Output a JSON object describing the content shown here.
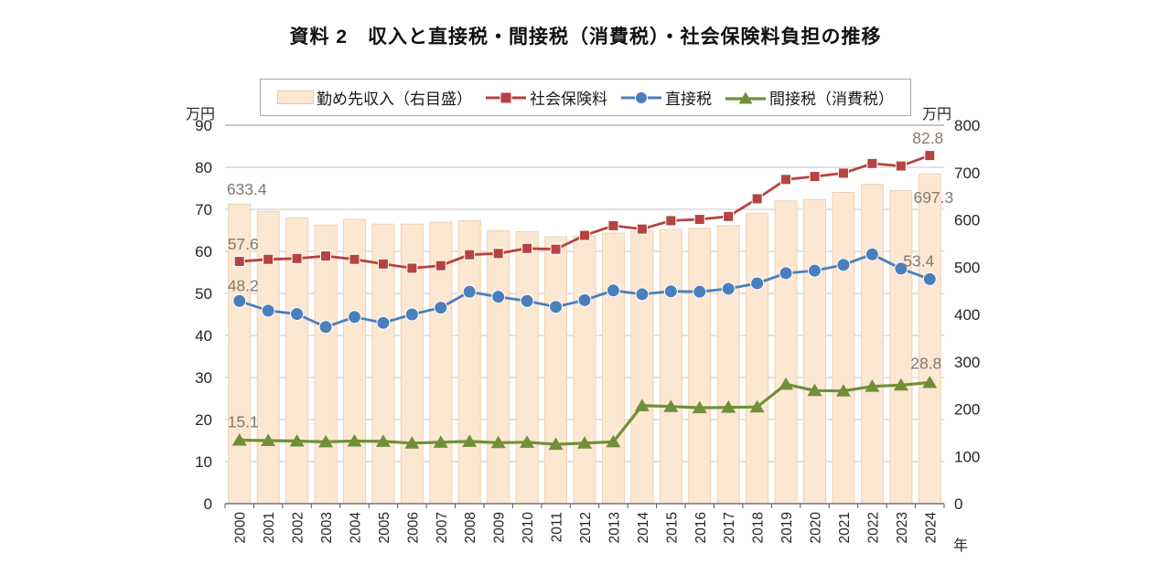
{
  "title": "資料 2　収入と直接税・間接税（消費税）・社会保険料負担の推移",
  "legend": [
    {
      "label": "勤め先収入（右目盛）",
      "type": "bar"
    },
    {
      "label": "社会保険料",
      "type": "square"
    },
    {
      "label": "直接税",
      "type": "circle"
    },
    {
      "label": "間接税（消費税）",
      "type": "triangle"
    }
  ],
  "axes": {
    "left_unit": "万円",
    "right_unit": "万円",
    "x_unit": "年",
    "left_ticks": [
      0,
      10,
      20,
      30,
      40,
      50,
      60,
      70,
      80,
      90
    ],
    "right_ticks": [
      0,
      100,
      200,
      300,
      400,
      500,
      600,
      700,
      800
    ]
  },
  "chart_data": {
    "type": "combo-bar-line",
    "x": [
      "2000",
      "2001",
      "2002",
      "2003",
      "2004",
      "2005",
      "2006",
      "2007",
      "2008",
      "2009",
      "2010",
      "2011",
      "2012",
      "2013",
      "2014",
      "2015",
      "2016",
      "2017",
      "2018",
      "2019",
      "2020",
      "2021",
      "2022",
      "2023",
      "2024"
    ],
    "left_range": [
      0,
      90
    ],
    "right_range": [
      0,
      800
    ],
    "grid": "horizontal, every 10 (left scale)",
    "legend_position": "top",
    "series": [
      {
        "name": "勤め先収入（右目盛）",
        "type": "bar",
        "axis": "right",
        "color": "#fce7d2",
        "border": "#f0d2b2",
        "values": [
          633.4,
          618,
          604,
          589,
          601,
          591,
          591,
          595,
          598,
          577,
          575,
          564,
          566,
          572,
          576,
          580,
          582,
          588,
          614,
          640,
          643,
          658,
          675,
          662,
          697.3
        ]
      },
      {
        "name": "社会保険料",
        "type": "line",
        "marker": "square",
        "axis": "left",
        "color": "#b5433f",
        "values": [
          57.6,
          58.1,
          58.3,
          58.9,
          58.1,
          57.0,
          56.0,
          56.6,
          59.2,
          59.5,
          60.7,
          60.5,
          63.8,
          66.1,
          65.3,
          67.3,
          67.6,
          68.3,
          72.5,
          77.1,
          77.8,
          78.6,
          80.9,
          80.3,
          82.8
        ]
      },
      {
        "name": "直接税",
        "type": "line",
        "marker": "circle",
        "axis": "left",
        "color": "#4a7fbe",
        "values": [
          48.2,
          45.9,
          45.1,
          42.0,
          44.4,
          43.0,
          45.0,
          46.6,
          50.4,
          49.2,
          48.2,
          46.8,
          48.4,
          50.7,
          49.8,
          50.5,
          50.4,
          51.1,
          52.4,
          54.8,
          55.4,
          56.8,
          59.3,
          55.9,
          53.4
        ]
      },
      {
        "name": "間接税（消費税）",
        "type": "line",
        "marker": "triangle",
        "axis": "left",
        "color": "#6f9038",
        "values": [
          15.1,
          15.0,
          14.9,
          14.7,
          14.9,
          14.8,
          14.4,
          14.6,
          14.8,
          14.5,
          14.6,
          14.1,
          14.4,
          14.7,
          23.3,
          23.1,
          22.8,
          22.9,
          23.0,
          28.4,
          26.9,
          26.8,
          27.9,
          28.2,
          28.8
        ]
      }
    ],
    "annotations": [
      "633.4",
      "697.3",
      "57.6",
      "82.8",
      "48.2",
      "53.4",
      "15.1",
      "28.8"
    ]
  }
}
